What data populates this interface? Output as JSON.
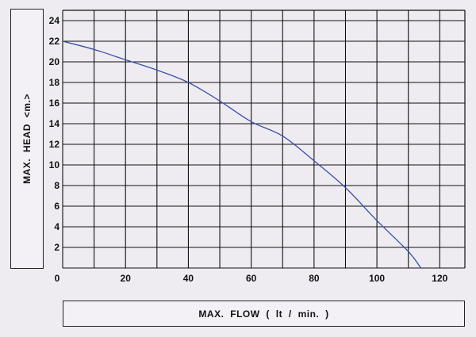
{
  "chart_data": {
    "type": "line",
    "title": "",
    "xlabel": "MAX.  FLOW  ( lt / min. )",
    "ylabel": "MAX.  HEAD  <m.>",
    "xlim": [
      0,
      128
    ],
    "ylim": [
      0,
      25
    ],
    "grid": true,
    "x_grid_step": 10,
    "y_grid_step": 2,
    "x_tick_labels": [
      "0",
      "20",
      "40",
      "60",
      "80",
      "100",
      "120"
    ],
    "x_ticks": [
      0,
      20,
      40,
      60,
      80,
      100,
      120
    ],
    "y_tick_labels": [
      "2",
      "4",
      "6",
      "8",
      "10",
      "12",
      "14",
      "16",
      "18",
      "20",
      "22",
      "24"
    ],
    "y_ticks": [
      2,
      4,
      6,
      8,
      10,
      12,
      14,
      16,
      18,
      20,
      22,
      24
    ],
    "line_color": "#3a4fa8",
    "series": [
      {
        "x": [
          0,
          10,
          20,
          30,
          40,
          50,
          60,
          70,
          80,
          90,
          100,
          110,
          114
        ],
        "y": [
          22,
          21.2,
          20.2,
          19.2,
          18,
          16.2,
          14.2,
          12.8,
          10.4,
          7.8,
          4.6,
          1.6,
          0
        ]
      }
    ]
  }
}
